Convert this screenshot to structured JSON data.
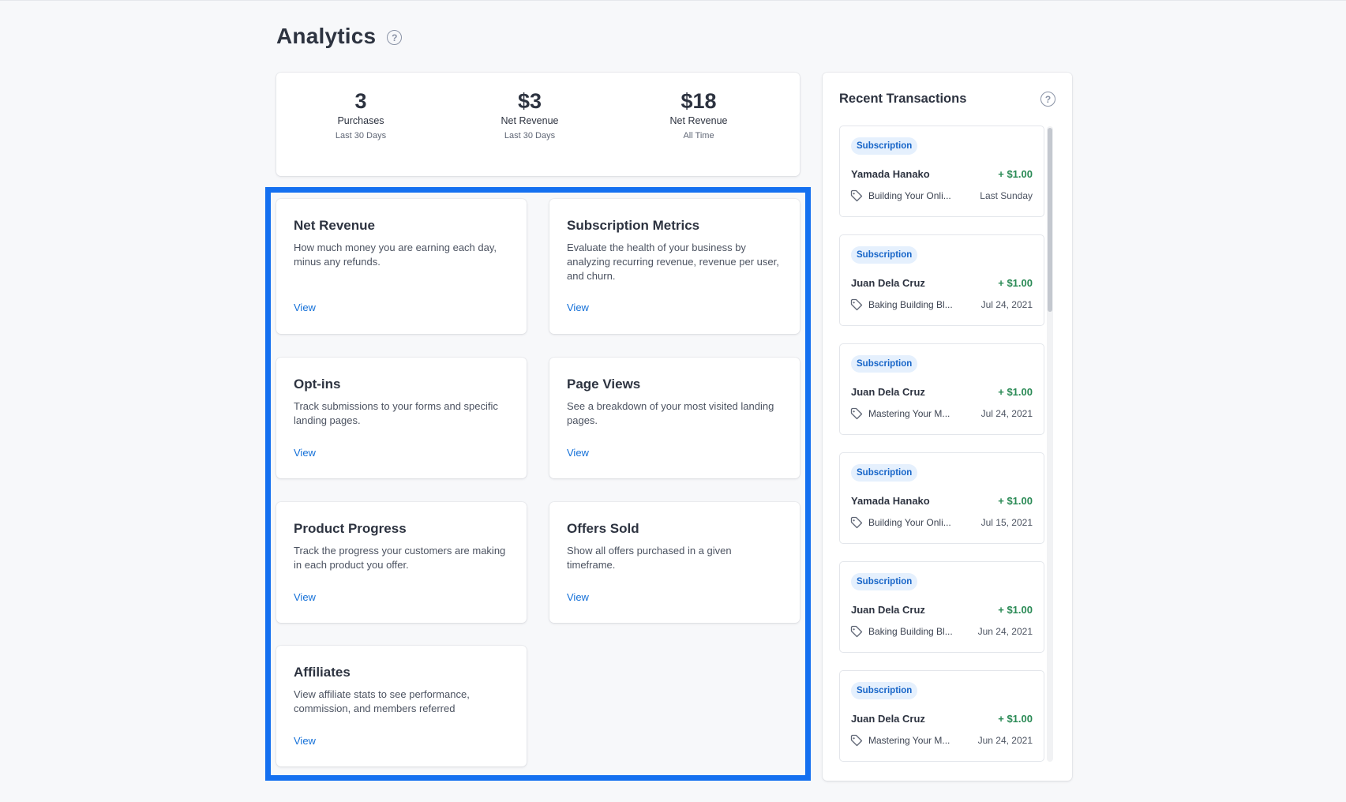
{
  "page": {
    "title": "Analytics"
  },
  "stats": [
    {
      "value": "3",
      "label": "Purchases",
      "sub": "Last 30 Days"
    },
    {
      "value": "$3",
      "label": "Net Revenue",
      "sub": "Last 30 Days"
    },
    {
      "value": "$18",
      "label": "Net Revenue",
      "sub": "All Time"
    }
  ],
  "reports": [
    {
      "title": "Net Revenue",
      "description": "How much money you are earning each day, minus any refunds.",
      "link": "View"
    },
    {
      "title": "Subscription Metrics",
      "description": "Evaluate the health of your business by analyzing recurring revenue, revenue per user, and churn.",
      "link": "View"
    },
    {
      "title": "Opt-ins",
      "description": "Track submissions to your forms and specific landing pages.",
      "link": "View"
    },
    {
      "title": "Page Views",
      "description": "See a breakdown of your most visited landing pages.",
      "link": "View"
    },
    {
      "title": "Product Progress",
      "description": "Track the progress your customers are making in each product you offer.",
      "link": "View"
    },
    {
      "title": "Offers Sold",
      "description": "Show all offers purchased in a given timeframe.",
      "link": "View"
    },
    {
      "title": "Affiliates",
      "description": "View affiliate stats to see performance, commission, and members referred",
      "link": "View"
    }
  ],
  "transactions": {
    "title": "Recent Transactions",
    "items": [
      {
        "badge": "Subscription",
        "name": "Yamada Hanako",
        "amount": "+ $1.00",
        "product": "Building Your Onli...",
        "date": "Last Sunday"
      },
      {
        "badge": "Subscription",
        "name": "Juan Dela Cruz",
        "amount": "+ $1.00",
        "product": "Baking Building Bl...",
        "date": "Jul 24, 2021"
      },
      {
        "badge": "Subscription",
        "name": "Juan Dela Cruz",
        "amount": "+ $1.00",
        "product": "Mastering Your M...",
        "date": "Jul 24, 2021"
      },
      {
        "badge": "Subscription",
        "name": "Yamada Hanako",
        "amount": "+ $1.00",
        "product": "Building Your Onli...",
        "date": "Jul 15, 2021"
      },
      {
        "badge": "Subscription",
        "name": "Juan Dela Cruz",
        "amount": "+ $1.00",
        "product": "Baking Building Bl...",
        "date": "Jun 24, 2021"
      },
      {
        "badge": "Subscription",
        "name": "Juan Dela Cruz",
        "amount": "+ $1.00",
        "product": "Mastering Your M...",
        "date": "Jun 24, 2021"
      }
    ]
  },
  "icons": {
    "help": "question-circle-icon",
    "tag": "tag-icon"
  },
  "colors": {
    "accent": "#1470d8",
    "highlight": "#1470f0",
    "positive": "#2a8a55",
    "badge_bg": "#e5f0fd"
  }
}
